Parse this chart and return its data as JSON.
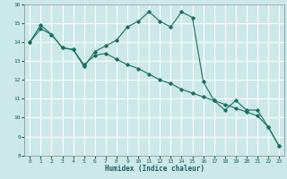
{
  "title": "",
  "xlabel": "Humidex (Indice chaleur)",
  "ylabel": "",
  "bg_color": "#cce8e8",
  "grid_color": "#ffffff",
  "line_color": "#1a7060",
  "xlim": [
    -0.5,
    23.5
  ],
  "ylim": [
    8,
    16
  ],
  "xticks": [
    0,
    1,
    2,
    3,
    4,
    5,
    6,
    7,
    8,
    9,
    10,
    11,
    12,
    13,
    14,
    15,
    16,
    17,
    18,
    19,
    20,
    21,
    22,
    23
  ],
  "yticks": [
    8,
    9,
    10,
    11,
    12,
    13,
    14,
    15,
    16
  ],
  "line1_x": [
    0,
    1,
    2,
    3,
    4,
    5,
    6,
    7,
    8,
    9,
    10,
    11,
    12,
    13,
    14,
    15,
    16,
    17,
    18,
    19,
    20,
    21,
    22,
    23
  ],
  "line1_y": [
    14.0,
    14.7,
    14.4,
    13.7,
    13.6,
    12.7,
    13.5,
    13.8,
    14.1,
    14.8,
    15.1,
    15.6,
    15.1,
    14.8,
    15.6,
    15.3,
    11.9,
    10.9,
    10.4,
    10.9,
    10.4,
    10.4,
    9.5,
    8.5
  ],
  "line2_x": [
    0,
    1,
    2,
    3,
    4,
    5,
    6,
    7,
    8,
    9,
    10,
    11,
    12,
    13,
    14,
    15,
    16,
    17,
    18,
    19,
    20,
    21,
    22,
    23
  ],
  "line2_y": [
    14.0,
    14.9,
    14.4,
    13.7,
    13.6,
    12.8,
    13.3,
    13.4,
    13.1,
    12.8,
    12.6,
    12.3,
    12.0,
    11.8,
    11.5,
    11.3,
    11.1,
    10.9,
    10.7,
    10.5,
    10.3,
    10.1,
    9.5,
    8.5
  ],
  "xlabel_fontsize": 5.5,
  "tick_fontsize": 4.5
}
